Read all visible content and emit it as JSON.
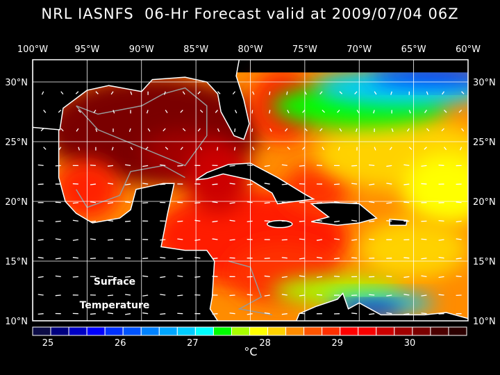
{
  "title": "NRL IASNFS  06-Hr Forecast valid at 2009/07/04 06Z",
  "map": {
    "lon_labels": [
      "100°W",
      "95°W",
      "90°W",
      "85°W",
      "80°W",
      "75°W",
      "70°W",
      "65°W",
      "60°W"
    ],
    "lat_labels": [
      "30°N",
      "25°N",
      "20°N",
      "15°N",
      "10°N"
    ],
    "field_label_line1": "Surface",
    "field_label_line2": "Temperature"
  },
  "colorbar": {
    "colors": [
      "#0c0c46",
      "#00007f",
      "#0000c4",
      "#0000ff",
      "#0032ff",
      "#0054ff",
      "#0082ff",
      "#00a6ff",
      "#00ccff",
      "#00ffff",
      "#00ff00",
      "#a8ff00",
      "#ffff00",
      "#ffd200",
      "#ff8c00",
      "#ff5500",
      "#ff3000",
      "#ff0000",
      "#f80000",
      "#cc0000",
      "#a00000",
      "#7a0000",
      "#4c0000",
      "#2c0000"
    ],
    "tick_labels": [
      "25",
      "26",
      "27",
      "28",
      "29",
      "30"
    ],
    "unit": "°C"
  }
}
